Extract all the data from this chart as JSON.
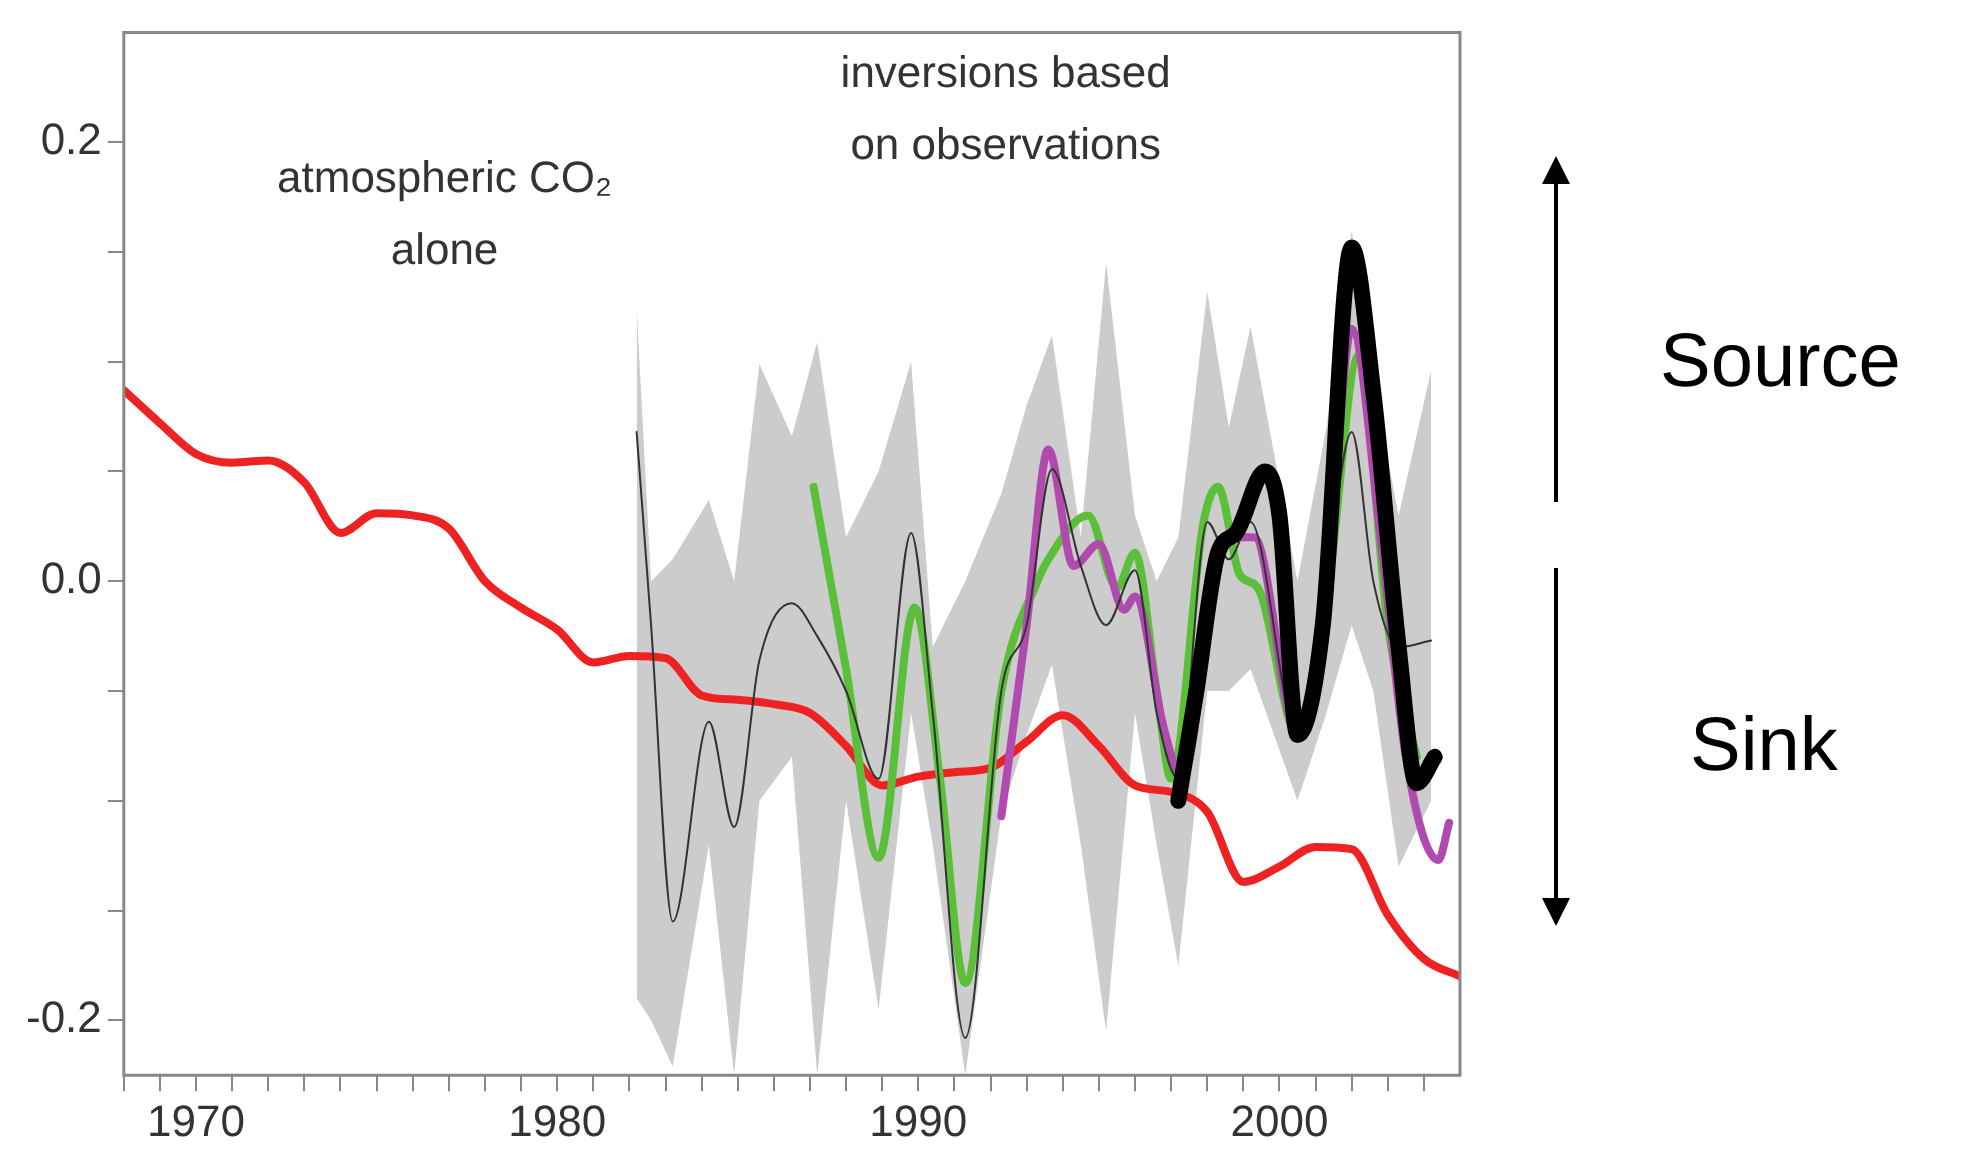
{
  "chart_data": {
    "type": "line",
    "annotations": [
      "atmospheric CO₂ alone",
      "inversions based on observations",
      "Source",
      "Sink"
    ],
    "xlim": [
      1968,
      2005
    ],
    "xticks": [
      {
        "value": 1968,
        "label": null
      },
      {
        "value": 1969,
        "label": null
      },
      1970,
      {
        "value": 1971,
        "label": null
      },
      {
        "value": 1972,
        "label": null
      },
      {
        "value": 1973,
        "label": null
      },
      {
        "value": 1974,
        "label": null
      },
      {
        "value": 1975,
        "label": null
      },
      {
        "value": 1976,
        "label": null
      },
      {
        "value": 1977,
        "label": null
      },
      {
        "value": 1978,
        "label": null
      },
      {
        "value": 1979,
        "label": null
      },
      1980,
      {
        "value": 1981,
        "label": null
      },
      {
        "value": 1982,
        "label": null
      },
      {
        "value": 1983,
        "label": null
      },
      {
        "value": 1984,
        "label": null
      },
      {
        "value": 1985,
        "label": null
      },
      {
        "value": 1986,
        "label": null
      },
      {
        "value": 1987,
        "label": null
      },
      {
        "value": 1988,
        "label": null
      },
      {
        "value": 1989,
        "label": null
      },
      1990,
      {
        "value": 1991,
        "label": null
      },
      {
        "value": 1992,
        "label": null
      },
      {
        "value": 1993,
        "label": null
      },
      {
        "value": 1994,
        "label": null
      },
      {
        "value": 1995,
        "label": null
      },
      {
        "value": 1996,
        "label": null
      },
      {
        "value": 1997,
        "label": null
      },
      {
        "value": 1998,
        "label": null
      },
      {
        "value": 1999,
        "label": null
      },
      2000,
      {
        "value": 2001,
        "label": null
      },
      {
        "value": 2002,
        "label": null
      },
      {
        "value": 2003,
        "label": null
      },
      {
        "value": 2004,
        "label": null
      }
    ],
    "ylim": [
      -0.225,
      0.25
    ],
    "yticks": [
      -0.2,
      {
        "value": -0.15,
        "label": null
      },
      {
        "value": -0.1,
        "label": null
      },
      {
        "value": -0.05,
        "label": null
      },
      {
        "value": 0,
        "label": "0.0"
      },
      {
        "value": 0.05,
        "label": null
      },
      {
        "value": 0.1,
        "label": null
      },
      {
        "value": 0.15,
        "label": null
      },
      0.2
    ],
    "grid": false,
    "legend": false,
    "marker": "none",
    "line_style": "solid",
    "series": [
      {
        "color": "#333333",
        "x": [
          1982.2,
          1982.6,
          1983.2,
          1984.2,
          1984.9,
          1985.6,
          1986.5,
          1987.2,
          1988,
          1988.9,
          1989.8,
          1990.4,
          1991.3,
          1992.3,
          1993,
          1993.7,
          1994.5,
          1995.2,
          1996,
          1996.6,
          1997.2,
          1998,
          1998.6,
          1999.2,
          2000.5,
          2001.3,
          2002,
          2002.6,
          2003.3,
          2004.2
        ],
        "values": [
          0.068,
          -0.02,
          -0.155,
          -0.064,
          -0.112,
          -0.036,
          -0.01,
          -0.025,
          -0.05,
          -0.09,
          0.022,
          -0.06,
          -0.208,
          -0.05,
          -0.02,
          0.051,
          0.007,
          -0.02,
          0.005,
          -0.06,
          -0.09,
          0.027,
          0.01,
          0.027,
          -0.07,
          0,
          0.068,
          0,
          -0.03,
          -0.027
        ],
        "lower": [
          -0.19,
          -0.2,
          -0.221,
          -0.12,
          -0.225,
          -0.1,
          -0.08,
          -0.225,
          -0.1,
          -0.195,
          -0.06,
          -0.12,
          -0.225,
          -0.106,
          -0.07,
          -0.038,
          -0.12,
          -0.205,
          -0.06,
          -0.12,
          -0.175,
          -0.05,
          -0.05,
          -0.04,
          -0.1,
          -0.06,
          -0.02,
          -0.05,
          -0.13,
          -0.1
        ],
        "upper": [
          0.125,
          0,
          0.01,
          0.037,
          0,
          0.099,
          0.066,
          0.109,
          0.02,
          0.05,
          0.1,
          -0.03,
          0,
          0.04,
          0.08,
          0.112,
          0.02,
          0.145,
          0.03,
          0,
          0.02,
          0.132,
          0.07,
          0.116,
          0,
          0.07,
          0.16,
          0.09,
          0.03,
          0.096
        ]
      },
      {
        "color": "#ee2222",
        "x": [
          1968,
          1969,
          1970,
          1971,
          1972,
          1973,
          1974,
          1975,
          1976,
          1977,
          1978,
          1979,
          1980,
          1981,
          1982,
          1983,
          1984,
          1985,
          1986,
          1987,
          1988,
          1989,
          1990,
          1991,
          1992,
          1993,
          1994,
          1995,
          1996,
          1997,
          1998,
          1999,
          2000,
          2001,
          2002,
          2003,
          2004,
          2005
        ],
        "values": [
          0.087,
          0.072,
          0.058,
          0.054,
          0.055,
          0.045,
          0.022,
          0.031,
          0.03,
          0.024,
          0,
          -0.012,
          -0.022,
          -0.037,
          -0.034,
          -0.035,
          -0.052,
          -0.054,
          -0.056,
          -0.06,
          -0.075,
          -0.093,
          -0.089,
          -0.087,
          -0.085,
          -0.073,
          -0.061,
          -0.075,
          -0.093,
          -0.096,
          -0.105,
          -0.137,
          -0.13,
          -0.121,
          -0.122,
          -0.152,
          -0.172,
          -0.18
        ]
      },
      {
        "color": "#5cbf3a",
        "x": [
          1987.1,
          1988,
          1988.9,
          1989.9,
          1990.6,
          1991.3,
          1992.3,
          1993.3,
          1993.6,
          1994.7,
          1995.5,
          1996,
          1996.6,
          1997,
          1997.9,
          1998.3,
          1998.9,
          1999.4,
          2000.5,
          2001.3,
          2002.2,
          2003,
          2003.8
        ],
        "values": [
          0.043,
          -0.04,
          -0.126,
          -0.012,
          -0.09,
          -0.183,
          -0.05,
          0,
          0.01,
          0.03,
          -0.003,
          0.013,
          -0.05,
          -0.09,
          0.027,
          0.043,
          0.003,
          -0.003,
          -0.07,
          -0.01,
          0.103,
          -0.02,
          -0.08
        ]
      },
      {
        "color": "#b04aaf",
        "x": [
          1992.3,
          1993,
          1993.6,
          1994.3,
          1995,
          1995.7,
          1996,
          1996.8,
          1997.3,
          1998.5,
          1999.3,
          2000.5,
          2001.3,
          2002,
          2002.8,
          2003.5,
          2004.4,
          2004.7
        ],
        "values": [
          -0.107,
          -0.02,
          0.06,
          0.007,
          0.017,
          -0.013,
          -0.007,
          -0.067,
          -0.09,
          0.02,
          0.02,
          -0.07,
          -0.01,
          0.115,
          0.02,
          -0.08,
          -0.127,
          -0.11
        ]
      },
      {
        "color": "#000000",
        "x": [
          1997.2,
          1997.7,
          1998.3,
          1998.8,
          1999.6,
          2000,
          2000.5,
          2001.2,
          2002,
          2002.6,
          2003.3,
          2003.8,
          2004.3
        ],
        "values": [
          -0.1,
          -0.05,
          0.013,
          0.022,
          0.05,
          0.03,
          -0.07,
          -0.02,
          0.152,
          0.086,
          -0.03,
          -0.092,
          -0.08
        ]
      }
    ]
  }
}
